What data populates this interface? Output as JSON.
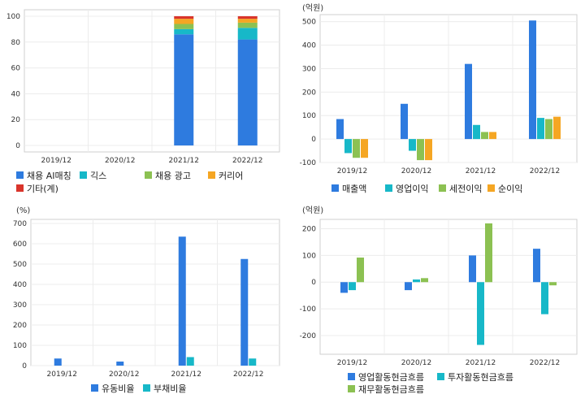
{
  "colors": {
    "blue": "#2e7bdf",
    "teal": "#17b8c8",
    "green": "#8cc152",
    "orange": "#f5a623",
    "red": "#d9342b"
  },
  "chart_data": [
    {
      "type": "bar",
      "stacked": true,
      "title": "",
      "unit": "",
      "categories": [
        "2019/12",
        "2020/12",
        "2021/12",
        "2022/12"
      ],
      "ylim": [
        -5,
        105
      ],
      "yticks": [
        0,
        20,
        40,
        60,
        80,
        100
      ],
      "legend": "bottom",
      "series": [
        {
          "name": "채용 AI매칭",
          "values": [
            0,
            0,
            86,
            82
          ],
          "color": "#2e7bdf"
        },
        {
          "name": "긱스",
          "values": [
            0,
            0,
            4,
            9
          ],
          "color": "#17b8c8"
        },
        {
          "name": "채용 광고",
          "values": [
            0,
            0,
            4,
            4
          ],
          "color": "#8cc152"
        },
        {
          "name": "커리어",
          "values": [
            0,
            0,
            4,
            3
          ],
          "color": "#f5a623"
        },
        {
          "name": "기타(계)",
          "values": [
            0,
            0,
            2,
            2
          ],
          "color": "#d9342b"
        }
      ]
    },
    {
      "type": "bar",
      "title": "",
      "unit": "(억원)",
      "categories": [
        "2019/12",
        "2020/12",
        "2021/12",
        "2022/12"
      ],
      "ylim": [
        -100,
        530
      ],
      "yticks": [
        -100,
        0,
        100,
        200,
        300,
        400,
        500
      ],
      "legend": "bottom",
      "series": [
        {
          "name": "매출액",
          "values": [
            85,
            150,
            320,
            505
          ],
          "color": "#2e7bdf"
        },
        {
          "name": "영업이익",
          "values": [
            -60,
            -50,
            60,
            90
          ],
          "color": "#17b8c8"
        },
        {
          "name": "세전이익",
          "values": [
            -80,
            -90,
            30,
            85
          ],
          "color": "#8cc152"
        },
        {
          "name": "순이익",
          "values": [
            -80,
            -90,
            30,
            95
          ],
          "color": "#f5a623"
        }
      ]
    },
    {
      "type": "bar",
      "title": "",
      "unit": "(%)",
      "categories": [
        "2019/12",
        "2020/12",
        "2021/12",
        "2022/12"
      ],
      "ylim": [
        0,
        720
      ],
      "yticks": [
        0,
        100,
        200,
        300,
        400,
        500,
        600,
        700
      ],
      "legend": "bottom",
      "series": [
        {
          "name": "유동비율",
          "values": [
            35,
            20,
            635,
            525
          ],
          "color": "#2e7bdf"
        },
        {
          "name": "부채비율",
          "values": [
            0,
            0,
            42,
            35
          ],
          "color": "#17b8c8"
        }
      ]
    },
    {
      "type": "bar",
      "title": "",
      "unit": "(억원)",
      "categories": [
        "2019/12",
        "2020/12",
        "2021/12",
        "2022/12"
      ],
      "ylim": [
        -270,
        235
      ],
      "yticks": [
        -200,
        -100,
        0,
        100,
        200
      ],
      "legend": "bottom",
      "series": [
        {
          "name": "영업활동현금흐름",
          "values": [
            -40,
            -30,
            100,
            125
          ],
          "color": "#2e7bdf"
        },
        {
          "name": "투자활동현금흐름",
          "values": [
            -30,
            10,
            -235,
            -120
          ],
          "color": "#17b8c8"
        },
        {
          "name": "재무활동현금흐름",
          "values": [
            92,
            15,
            220,
            -12
          ],
          "color": "#8cc152"
        }
      ]
    }
  ]
}
